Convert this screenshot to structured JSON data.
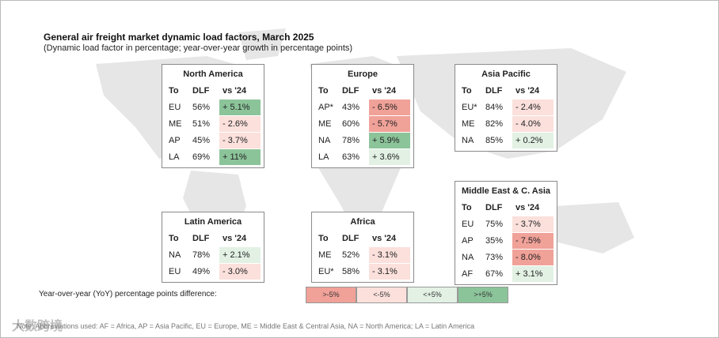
{
  "title": "General air freight market dynamic load factors, March 2025",
  "subtitle": "(Dynamic load factor in percentage; year-over-year growth in percentage points)",
  "headers": [
    "To",
    "DLF",
    "vs '24"
  ],
  "regions": [
    {
      "name": "North America",
      "rows": [
        [
          "EU",
          "56%",
          "+ 5.1%"
        ],
        [
          "ME",
          "51%",
          "- 2.6%"
        ],
        [
          "AP",
          "45%",
          "- 3.7%"
        ],
        [
          "LA",
          "69%",
          "+ 11%"
        ]
      ],
      "colors": [
        "#8cc49a",
        "#fbe0dc",
        "#fbe0dc",
        "#8cc49a"
      ]
    },
    {
      "name": "Europe",
      "rows": [
        [
          "AP*",
          "43%",
          "- 6.5%"
        ],
        [
          "ME",
          "60%",
          "- 5.7%"
        ],
        [
          "NA",
          "78%",
          "+ 5.9%"
        ],
        [
          "LA",
          "63%",
          "+ 3.6%"
        ]
      ],
      "colors": [
        "#f0a198",
        "#f0a198",
        "#8cc49a",
        "#e2f1e4"
      ]
    },
    {
      "name": "Asia Pacific",
      "rows": [
        [
          "EU*",
          "84%",
          "- 2.4%"
        ],
        [
          "ME",
          "82%",
          "- 4.0%"
        ],
        [
          "NA",
          "85%",
          "+ 0.2%"
        ]
      ],
      "colors": [
        "#fbe0dc",
        "#fbe0dc",
        "#e2f1e4"
      ]
    },
    {
      "name": "Middle East & C. Asia",
      "rows": [
        [
          "EU",
          "75%",
          "- 3.7%"
        ],
        [
          "AP",
          "35%",
          "- 7.5%"
        ],
        [
          "NA",
          "73%",
          "- 8.0%"
        ],
        [
          "AF",
          "67%",
          "+ 3.1%"
        ]
      ],
      "colors": [
        "#fbe0dc",
        "#f0a198",
        "#f0a198",
        "#e2f1e4"
      ]
    },
    {
      "name": "Latin America",
      "rows": [
        [
          "NA",
          "78%",
          "+ 2.1%"
        ],
        [
          "EU",
          "49%",
          "- 3.0%"
        ]
      ],
      "colors": [
        "#e2f1e4",
        "#fbe0dc"
      ]
    },
    {
      "name": "Africa",
      "rows": [
        [
          "ME",
          "52%",
          "- 3.1%"
        ],
        [
          "EU*",
          "58%",
          "- 3.1%"
        ]
      ],
      "colors": [
        "#fbe0dc",
        "#fbe0dc"
      ]
    }
  ],
  "legend": {
    "label": "Year-over-year (YoY) percentage points difference:",
    "items": [
      {
        "label": ">-5%",
        "color": "#f0a198"
      },
      {
        "label": "<-5%",
        "color": "#fbe0dc"
      },
      {
        "label": "<+5%",
        "color": "#e2f1e4"
      },
      {
        "label": ">+5%",
        "color": "#8cc49a"
      }
    ]
  },
  "note": "Note: Abbreviations used: AF = Africa, AP = Asia Pacific, EU = Europe, ME = Middle East & Central Asia, NA = North America; LA = Latin America",
  "watermark": "大数跨境"
}
